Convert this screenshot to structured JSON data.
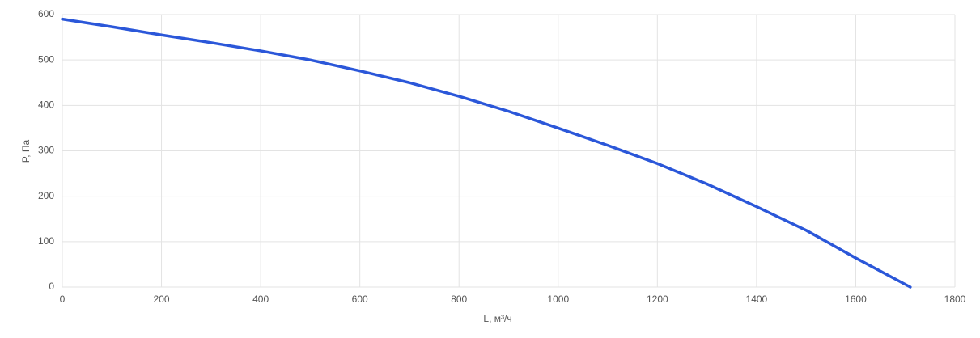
{
  "chart_data": {
    "type": "line",
    "x_label": "L, м³/ч",
    "y_label": "P, Па",
    "x": [
      0,
      100,
      200,
      300,
      400,
      500,
      600,
      700,
      800,
      900,
      1000,
      1100,
      1200,
      1300,
      1400,
      1500,
      1600,
      1710
    ],
    "series": [
      {
        "name": null,
        "color": "#2b57d9",
        "values": [
          590,
          573,
          555,
          538,
          520,
          500,
          476,
          450,
          420,
          387,
          350,
          312,
          272,
          227,
          177,
          125,
          64,
          0
        ]
      }
    ],
    "xlim": [
      0,
      1800
    ],
    "xticks": [
      0,
      200,
      400,
      600,
      800,
      1000,
      1200,
      1400,
      1600,
      1800
    ],
    "ylim": [
      0,
      600
    ],
    "yticks": [
      0,
      100,
      200,
      300,
      400,
      500,
      600
    ],
    "grid": true
  }
}
